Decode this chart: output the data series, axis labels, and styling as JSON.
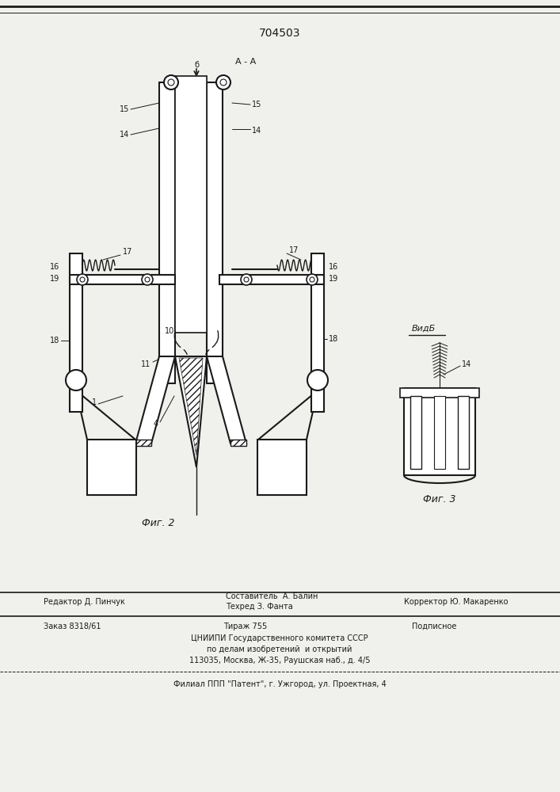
{
  "patent_number": "704503",
  "bg_color": "#f0f0ec",
  "line_color": "#1a1a1a",
  "fig2_caption": "Фиг. 2",
  "fig3_caption": "Фиг. 3",
  "vidb_label": "ВидБ",
  "aa_label": "А - А",
  "footer_last": "Филиал ППП \"Патент\", г. Ужгород, ул. Проектная, 4"
}
